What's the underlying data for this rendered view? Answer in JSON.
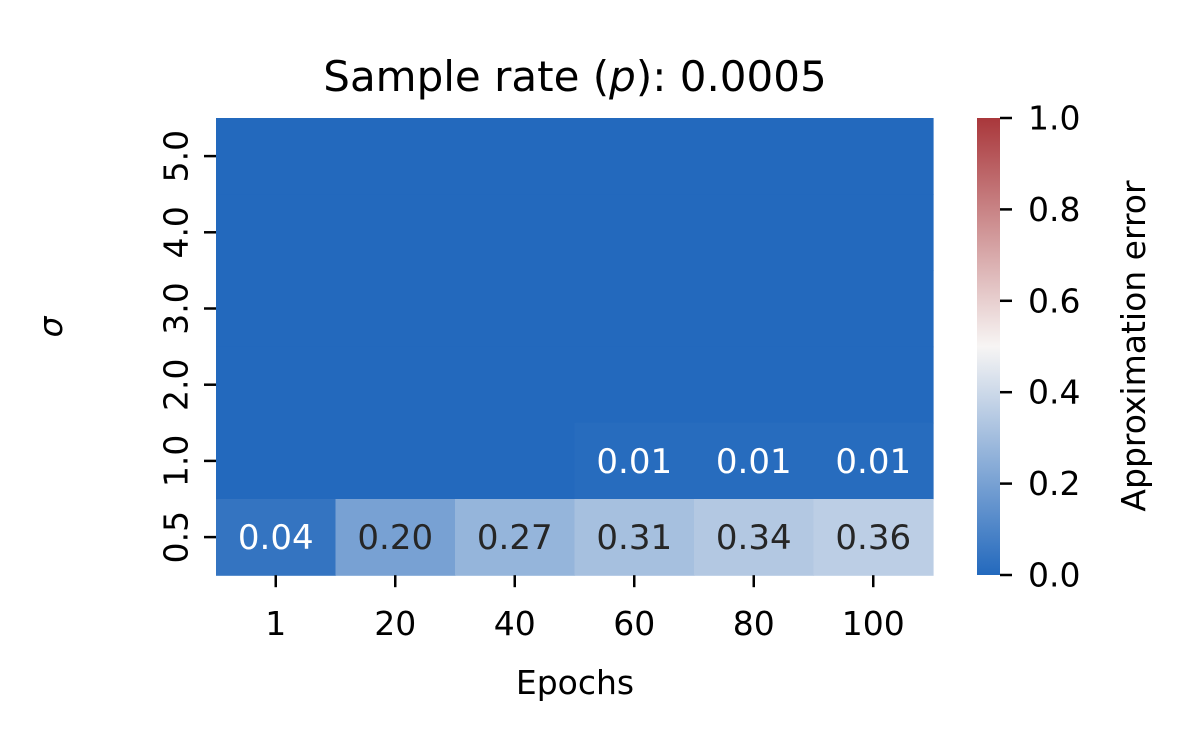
{
  "chart_data": {
    "type": "heatmap",
    "title": "Sample rate (p): 0.0005",
    "title_prefix": "Sample rate (",
    "title_symbol": "p",
    "title_suffix": "): 0.0005",
    "xlabel": "Epochs",
    "ylabel": "σ",
    "x_categories": [
      "1",
      "20",
      "40",
      "60",
      "80",
      "100"
    ],
    "y_categories": [
      "5.0",
      "4.0",
      "3.0",
      "2.0",
      "1.0",
      "0.5"
    ],
    "values": [
      [
        0.0,
        0.0,
        0.0,
        0.0,
        0.0,
        0.0
      ],
      [
        0.0,
        0.0,
        0.0,
        0.0,
        0.0,
        0.0
      ],
      [
        0.0,
        0.0,
        0.0,
        0.0,
        0.0,
        0.0
      ],
      [
        0.0,
        0.0,
        0.0,
        0.0,
        0.0,
        0.0
      ],
      [
        0.0,
        0.0,
        0.001,
        0.01,
        0.01,
        0.01
      ],
      [
        0.04,
        0.2,
        0.27,
        0.31,
        0.34,
        0.36
      ]
    ],
    "annotations": [
      [
        "",
        "",
        "",
        "",
        "",
        ""
      ],
      [
        "",
        "",
        "",
        "",
        "",
        ""
      ],
      [
        "",
        "",
        "",
        "",
        "",
        ""
      ],
      [
        "",
        "",
        "",
        "",
        "",
        ""
      ],
      [
        "",
        "",
        "",
        "0.01",
        "0.01",
        "0.01"
      ],
      [
        "0.04",
        "0.20",
        "0.27",
        "0.31",
        "0.34",
        "0.36"
      ]
    ],
    "colorbar": {
      "label": "Approximation error",
      "range": [
        0.0,
        1.0
      ],
      "ticks": [
        "0.0",
        "0.2",
        "0.4",
        "0.6",
        "0.8",
        "1.0"
      ],
      "colormap": "vlag",
      "color_low": "#2369bd",
      "color_mid": "#f7f5f4",
      "color_high": "#a9373b"
    }
  }
}
